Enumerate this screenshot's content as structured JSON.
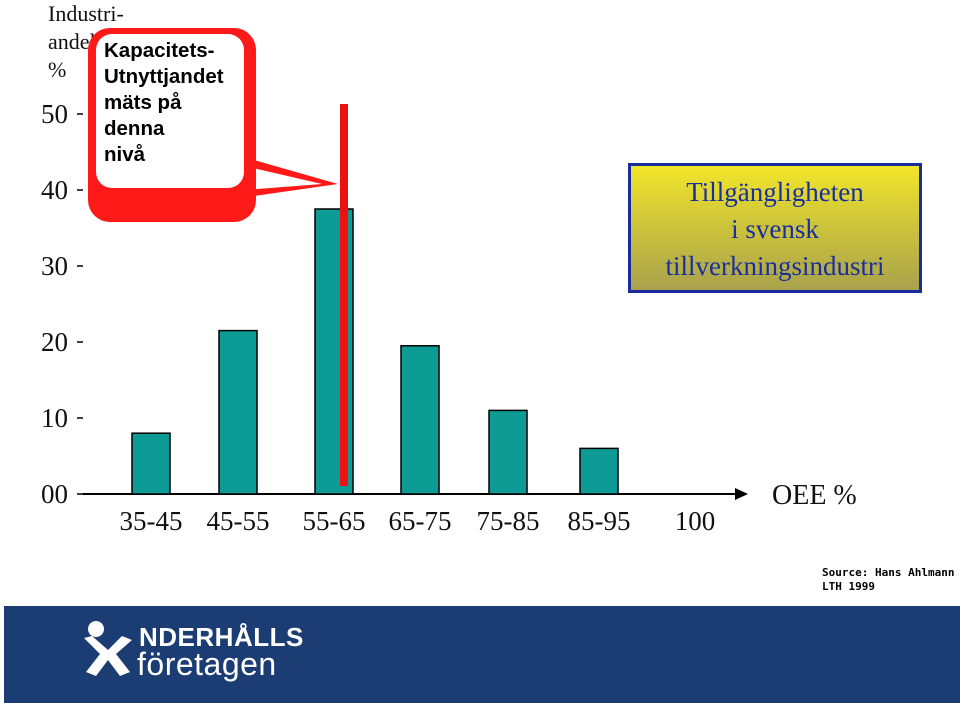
{
  "y_axis_label": "Industri-\nandel\n%",
  "callout": {
    "text": "Kapacitets-\nUtnyttjandet\nmäts på\ndenna\nnivå",
    "border_color": "#ff1a1a"
  },
  "info_box": {
    "text": "Tillgängligheten\ni svensk\ntillverkningsindustri",
    "text_color": "#1a2f9e",
    "border_color": "#1a2b9c"
  },
  "x_unit_label": "OEE %",
  "source": "Source: Hans Ahlmann\nLTH 1999",
  "footer": {
    "logo_line1": "NDERHÅLLS",
    "logo_line2": "företagen",
    "background": "#1b3d73"
  },
  "chart_data": {
    "type": "bar",
    "categories": [
      "35-45",
      "45-55",
      "55-65",
      "65-75",
      "75-85",
      "85-95",
      "100"
    ],
    "values": [
      8,
      21.5,
      37.5,
      19.5,
      11,
      6,
      0
    ],
    "y_ticks": [
      "00",
      "10",
      "20",
      "30",
      "40",
      "50"
    ],
    "y_tick_values": [
      0,
      10,
      20,
      30,
      40,
      50
    ],
    "ylim": [
      0,
      60
    ],
    "bar_color": "#0d9b96",
    "marker_line": {
      "category": "55-65",
      "color": "#ee1111"
    },
    "grid": false
  }
}
